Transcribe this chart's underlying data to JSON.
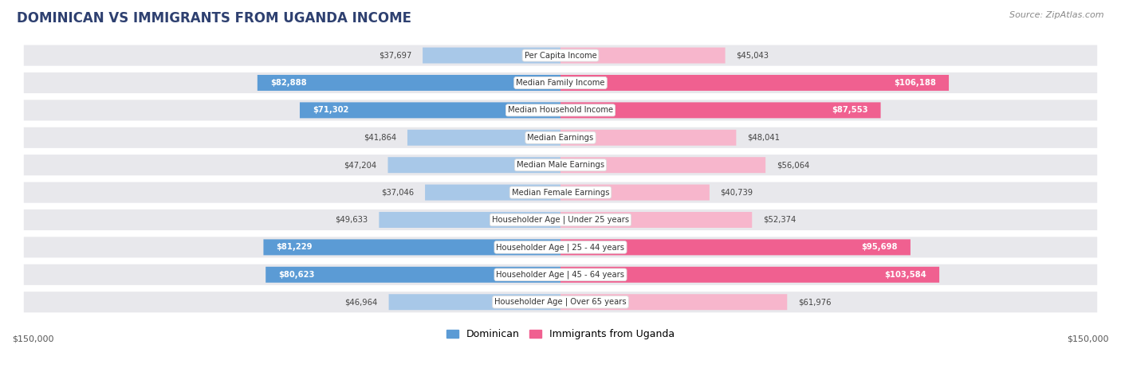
{
  "title": "DOMINICAN VS IMMIGRANTS FROM UGANDA INCOME",
  "source": "Source: ZipAtlas.com",
  "categories": [
    "Per Capita Income",
    "Median Family Income",
    "Median Household Income",
    "Median Earnings",
    "Median Male Earnings",
    "Median Female Earnings",
    "Householder Age | Under 25 years",
    "Householder Age | 25 - 44 years",
    "Householder Age | 45 - 64 years",
    "Householder Age | Over 65 years"
  ],
  "dominican": [
    37697,
    82888,
    71302,
    41864,
    47204,
    37046,
    49633,
    81229,
    80623,
    46964
  ],
  "uganda": [
    45043,
    106188,
    87553,
    48041,
    56064,
    40739,
    52374,
    95698,
    103584,
    61976
  ],
  "max_val": 150000,
  "color_dominican_light": "#a8c8e8",
  "color_dominican_dark": "#5b9bd5",
  "color_uganda_light": "#f7b6cc",
  "color_uganda_dark": "#f06090",
  "label_dominican": "Dominican",
  "label_uganda": "Immigrants from Uganda",
  "x_tick_label_left": "$150,000",
  "x_tick_label_right": "$150,000",
  "row_bg_color": "#e8e8ec",
  "title_color": "#2e4070",
  "label_text_color": "#444444",
  "threshold": 65000
}
